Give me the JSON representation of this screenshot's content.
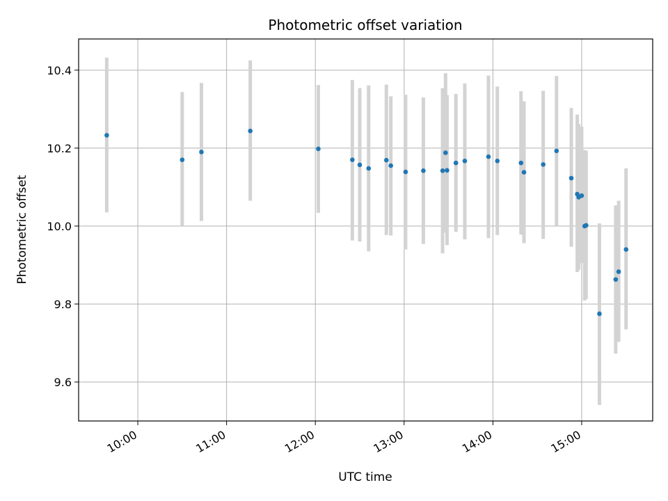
{
  "chart_data": {
    "type": "scatter",
    "title": "Photometric offset variation",
    "xlabel": "UTC time",
    "ylabel": "Photometric offset",
    "xlim": [
      "09:20",
      "15:48"
    ],
    "ylim": [
      9.5,
      10.48
    ],
    "x_ticks": [
      "10:00",
      "11:00",
      "12:00",
      "13:00",
      "14:00",
      "15:00"
    ],
    "y_ticks": [
      9.6,
      9.8,
      10.0,
      10.2,
      10.4
    ],
    "grid": true,
    "colors": {
      "point": "#1f77b4",
      "errorbar": "#d3d3d3",
      "grid": "#b0b0b0"
    },
    "series": [
      {
        "points": [
          {
            "t": "09:39",
            "y": 10.233,
            "lo": 10.035,
            "hi": 10.432
          },
          {
            "t": "10:30",
            "y": 10.17,
            "lo": 10.0,
            "hi": 10.344
          },
          {
            "t": "10:43",
            "y": 10.19,
            "lo": 10.013,
            "hi": 10.367
          },
          {
            "t": "11:16",
            "y": 10.244,
            "lo": 10.065,
            "hi": 10.425
          },
          {
            "t": "12:02",
            "y": 10.198,
            "lo": 10.034,
            "hi": 10.362
          },
          {
            "t": "12:25",
            "y": 10.17,
            "lo": 9.963,
            "hi": 10.375
          },
          {
            "t": "12:30",
            "y": 10.157,
            "lo": 9.96,
            "hi": 10.354
          },
          {
            "t": "12:36",
            "y": 10.148,
            "lo": 9.935,
            "hi": 10.361
          },
          {
            "t": "12:48",
            "y": 10.169,
            "lo": 9.977,
            "hi": 10.363
          },
          {
            "t": "12:51",
            "y": 10.155,
            "lo": 9.976,
            "hi": 10.333
          },
          {
            "t": "13:01",
            "y": 10.139,
            "lo": 9.94,
            "hi": 10.337
          },
          {
            "t": "13:13",
            "y": 10.142,
            "lo": 9.954,
            "hi": 10.33
          },
          {
            "t": "13:26",
            "y": 10.142,
            "lo": 9.93,
            "hi": 10.354
          },
          {
            "t": "13:28",
            "y": 10.188,
            "lo": 9.983,
            "hi": 10.392
          },
          {
            "t": "13:29",
            "y": 10.143,
            "lo": 9.951,
            "hi": 10.336
          },
          {
            "t": "13:35",
            "y": 10.162,
            "lo": 9.985,
            "hi": 10.339
          },
          {
            "t": "13:41",
            "y": 10.167,
            "lo": 9.966,
            "hi": 10.366
          },
          {
            "t": "13:57",
            "y": 10.178,
            "lo": 9.969,
            "hi": 10.386
          },
          {
            "t": "14:03",
            "y": 10.167,
            "lo": 9.977,
            "hi": 10.358
          },
          {
            "t": "14:19",
            "y": 10.162,
            "lo": 9.978,
            "hi": 10.346
          },
          {
            "t": "14:21",
            "y": 10.138,
            "lo": 9.956,
            "hi": 10.32
          },
          {
            "t": "14:34",
            "y": 10.158,
            "lo": 9.967,
            "hi": 10.347
          },
          {
            "t": "14:43",
            "y": 10.193,
            "lo": 10.0,
            "hi": 10.385
          },
          {
            "t": "14:53",
            "y": 10.123,
            "lo": 9.947,
            "hi": 10.303
          },
          {
            "t": "14:57",
            "y": 10.082,
            "lo": 9.882,
            "hi": 10.286
          },
          {
            "t": "14:58",
            "y": 10.074,
            "lo": 9.888,
            "hi": 10.262
          },
          {
            "t": "15:00",
            "y": 10.078,
            "lo": 9.905,
            "hi": 10.255
          },
          {
            "t": "15:02",
            "y": 10.0,
            "lo": 9.809,
            "hi": 10.195
          },
          {
            "t": "15:03",
            "y": 10.002,
            "lo": 9.813,
            "hi": 10.193
          },
          {
            "t": "15:12",
            "y": 9.775,
            "lo": 9.541,
            "hi": 10.007
          },
          {
            "t": "15:23",
            "y": 9.863,
            "lo": 9.673,
            "hi": 10.053
          },
          {
            "t": "15:25",
            "y": 9.883,
            "lo": 9.703,
            "hi": 10.065
          },
          {
            "t": "15:30",
            "y": 9.94,
            "lo": 9.735,
            "hi": 10.148
          }
        ]
      }
    ]
  }
}
